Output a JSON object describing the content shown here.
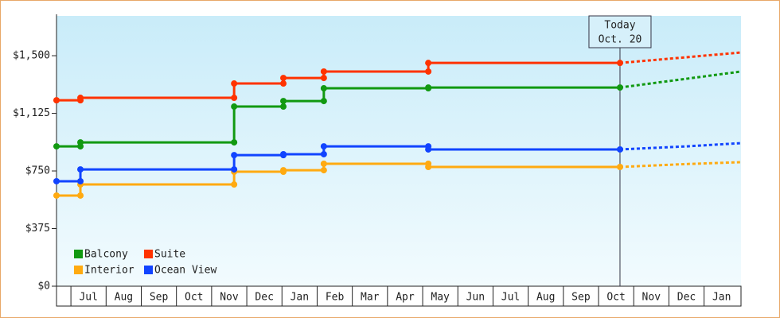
{
  "chart_data": {
    "type": "step-line",
    "xlim": [
      -0.5,
      19.05
    ],
    "xticks": [
      {
        "value": 0.5,
        "label": "Jul"
      },
      {
        "value": 1.5,
        "label": "Aug"
      },
      {
        "value": 2.5,
        "label": "Sep"
      },
      {
        "value": 3.5,
        "label": "Oct"
      },
      {
        "value": 4.5,
        "label": "Nov"
      },
      {
        "value": 5.5,
        "label": "Dec"
      },
      {
        "value": 6.5,
        "label": "Jan"
      },
      {
        "value": 7.5,
        "label": "Feb"
      },
      {
        "value": 8.5,
        "label": "Mar"
      },
      {
        "value": 9.5,
        "label": "Apr"
      },
      {
        "value": 10.5,
        "label": "May"
      },
      {
        "value": 11.5,
        "label": "Jun"
      },
      {
        "value": 12.5,
        "label": "Jul"
      },
      {
        "value": 13.5,
        "label": "Aug"
      },
      {
        "value": 14.5,
        "label": "Sep"
      },
      {
        "value": 15.5,
        "label": "Oct"
      },
      {
        "value": 16.5,
        "label": "Nov"
      },
      {
        "value": 17.5,
        "label": "Dec"
      },
      {
        "value": 18.5,
        "label": "Jan"
      }
    ],
    "ylim": [
      0,
      1759
    ],
    "yticks": [
      {
        "value": 0,
        "label": "$0"
      },
      {
        "value": 375,
        "label": "$375"
      },
      {
        "value": 750,
        "label": "$750"
      },
      {
        "value": 1125,
        "label": "$1,125"
      },
      {
        "value": 1500,
        "label": "$1,500"
      }
    ],
    "annotation": {
      "x": 15.61,
      "lines": [
        "Today",
        "Oct. 20"
      ]
    },
    "legend": "lower-left",
    "series": [
      {
        "name": "Balcony",
        "color": "#119911",
        "x": [
          -0.41,
          0.27,
          0.27,
          4.64,
          4.64,
          6.04,
          6.04,
          7.19,
          7.19,
          10.16,
          10.16,
          15.61
        ],
        "values": [
          910,
          910,
          936,
          936,
          1169,
          1169,
          1205,
          1205,
          1288,
          1288,
          1293,
          1293
        ],
        "forecast": {
          "x": [
            15.61,
            17.5,
            19.05
          ],
          "values": [
            1293,
            1350,
            1397
          ]
        }
      },
      {
        "name": "Suite",
        "color": "#ff3300",
        "x": [
          -0.41,
          0.27,
          0.27,
          4.64,
          4.64,
          6.04,
          6.04,
          7.19,
          7.19,
          10.16,
          10.16,
          15.61
        ],
        "values": [
          1210,
          1210,
          1226,
          1226,
          1319,
          1319,
          1355,
          1355,
          1397,
          1397,
          1453,
          1453
        ],
        "forecast": {
          "x": [
            15.61,
            17.5,
            19.05
          ],
          "values": [
            1453,
            1490,
            1521
          ]
        }
      },
      {
        "name": "Interior",
        "color": "#ffaa11",
        "x": [
          -0.41,
          0.27,
          0.27,
          4.64,
          4.64,
          6.04,
          6.04,
          7.19,
          7.19,
          10.16,
          10.16,
          15.61
        ],
        "values": [
          590,
          590,
          662,
          662,
          745,
          745,
          755,
          755,
          797,
          797,
          776,
          776
        ],
        "forecast": {
          "x": [
            15.61,
            17.5,
            19.05
          ],
          "values": [
            776,
            795,
            807
          ]
        }
      },
      {
        "name": "Ocean View",
        "color": "#1144ff",
        "x": [
          -0.41,
          0.27,
          0.27,
          4.64,
          4.64,
          6.04,
          6.04,
          7.19,
          7.19,
          10.16,
          10.16,
          15.61
        ],
        "values": [
          683,
          683,
          760,
          760,
          853,
          853,
          859,
          859,
          910,
          910,
          890,
          890
        ],
        "forecast": {
          "x": [
            15.61,
            17.5,
            19.05
          ],
          "values": [
            890,
            910,
            931
          ]
        }
      }
    ]
  }
}
